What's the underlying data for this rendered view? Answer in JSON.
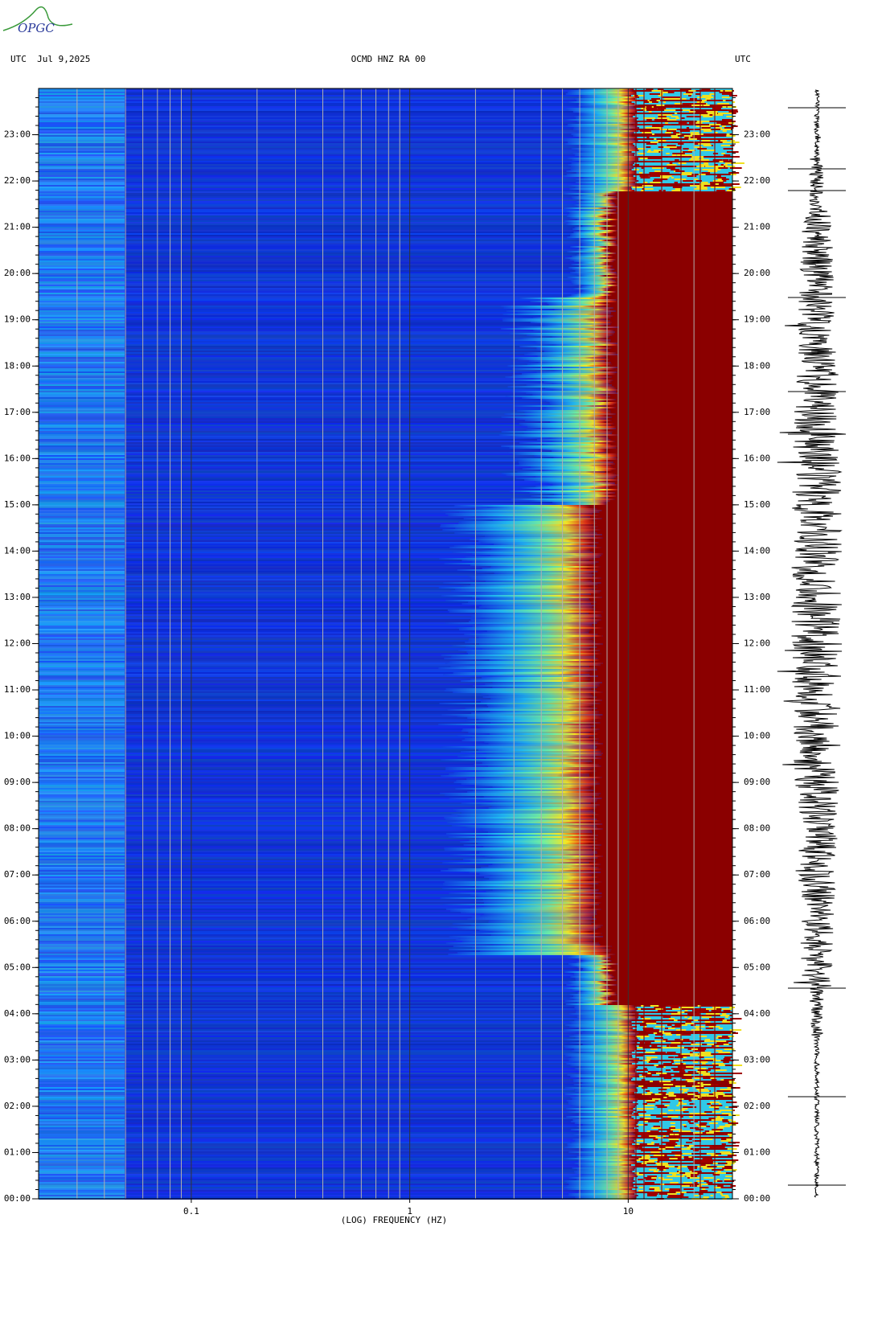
{
  "logo": "OPGC",
  "header": {
    "left": "UTC  Jul 9,2025",
    "center": "OCMD HNZ RA 00",
    "right": "UTC"
  },
  "chart_data": {
    "type": "spectrogram",
    "x_label": "(LOG) FREQUENCY (HZ)",
    "x_scale": "log",
    "xlim": [
      0.02,
      30
    ],
    "xticks": [
      0.1,
      1,
      10
    ],
    "ylim": [
      0,
      24
    ],
    "yticks": [
      {
        "value": 0,
        "label": "00:00"
      },
      {
        "value": 1,
        "label": "01:00"
      },
      {
        "value": 2,
        "label": "02:00"
      },
      {
        "value": 3,
        "label": "03:00"
      },
      {
        "value": 4,
        "label": "04:00"
      },
      {
        "value": 5,
        "label": "05:00"
      },
      {
        "value": 6,
        "label": "06:00"
      },
      {
        "value": 7,
        "label": "07:00"
      },
      {
        "value": 8,
        "label": "08:00"
      },
      {
        "value": 9,
        "label": "09:00"
      },
      {
        "value": 10,
        "label": "10:00"
      },
      {
        "value": 11,
        "label": "11:00"
      },
      {
        "value": 12,
        "label": "12:00"
      },
      {
        "value": 13,
        "label": "13:00"
      },
      {
        "value": 14,
        "label": "14:00"
      },
      {
        "value": 15,
        "label": "15:00"
      },
      {
        "value": 16,
        "label": "16:00"
      },
      {
        "value": 17,
        "label": "17:00"
      },
      {
        "value": 18,
        "label": "18:00"
      },
      {
        "value": 19,
        "label": "19:00"
      },
      {
        "value": 20,
        "label": "20:00"
      },
      {
        "value": 21,
        "label": "21:00"
      },
      {
        "value": 22,
        "label": "22:00"
      },
      {
        "value": 23,
        "label": "23:00"
      }
    ],
    "grid": true
  }
}
